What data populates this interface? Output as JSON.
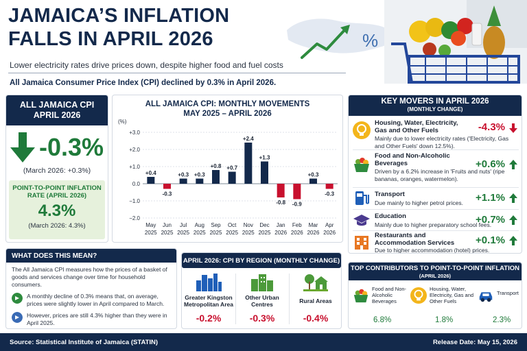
{
  "header": {
    "title": "JAMAICA’S INFLATION FALLS IN APRIL 2026",
    "subtitle": "Lower electricity rates drive prices down, despite higher food and fuel costs",
    "headline": "All Jamaica Consumer Price Index (CPI) declined by 0.3% in April 2026.",
    "map_symbol": "%"
  },
  "cpi_card": {
    "title": "ALL JAMAICA CPI APRIL 2026",
    "value": "-0.3%",
    "march_note": "(March 2026: +0.3%)",
    "p2p_label": "POINT-TO-POINT INFLATION RATE (APRIL 2026)",
    "p2p_value": "4.3%",
    "p2p_march": "(March 2026: 4.3%)"
  },
  "chart_data": {
    "type": "bar",
    "title": "ALL JAMAICA CPI:  MONTHLY MOVEMENTS",
    "subtitle": "MAY 2025 – APRIL 2026",
    "ylabel": "(%)",
    "categories": [
      "May 2025",
      "Jun 2025",
      "Jul 2025",
      "Aug 2025",
      "Sep 2025",
      "Oct 2025",
      "Nov 2025",
      "Dec 2025",
      "Jan 2026",
      "Feb 2026",
      "Mar 2026",
      "Apr 2026"
    ],
    "cat_month": [
      "May",
      "Jun",
      "Jul",
      "Aug",
      "Sep",
      "Oct",
      "Nov",
      "Dec",
      "Jan",
      "Feb",
      "Mar",
      "Apr"
    ],
    "cat_year": [
      "2025",
      "2025",
      "2025",
      "2025",
      "2025",
      "2025",
      "2025",
      "2025",
      "2026",
      "2026",
      "2026",
      "2026"
    ],
    "values": [
      0.4,
      -0.3,
      0.3,
      0.3,
      0.8,
      0.7,
      2.4,
      1.3,
      -0.8,
      -0.9,
      0.3,
      -0.3
    ],
    "data_labels": [
      "+0.4",
      "-0.3",
      "+0.3",
      "+0.3",
      "+0.8",
      "+0.7",
      "+2.4",
      "+1.3",
      "-0.8",
      "-0.9",
      "+0.3",
      "-0.3"
    ],
    "yticks": [
      3.0,
      2.0,
      1.0,
      0.0,
      -1.0,
      -2.0
    ],
    "ytick_labels": [
      "+3.0",
      "+2.0",
      "+1.0",
      "0.0",
      "−1.0",
      "−2.0"
    ],
    "ylim": [
      -2.0,
      3.0
    ],
    "grid": true,
    "colors": {
      "positive": "#13294b",
      "negative": "#c8102e"
    }
  },
  "movers": {
    "title": "KEY MOVERS IN APRIL 2026",
    "subtitle": "(MONTHLY CHANGE)",
    "items": [
      {
        "icon": "lightbulb-icon",
        "name": "Housing, Water, Electricity, Gas and Other Fuels",
        "desc": "Mainly due to lower electricity rates ('Electricity, Gas and Other Fuels' down 12.5%).",
        "value": "-4.3%",
        "direction": "down"
      },
      {
        "icon": "food-basket-icon",
        "name": "Food and Non-Alcoholic Beverages",
        "desc": "Driven by a 6.2% increase in 'Fruits and nuts' (ripe bananas, oranges, watermelon).",
        "value": "+0.6%",
        "direction": "up"
      },
      {
        "icon": "fuel-pump-icon",
        "name": "Transport",
        "desc": "Due mainly to higher petrol prices.",
        "value": "+1.1%",
        "direction": "up"
      },
      {
        "icon": "graduation-cap-icon",
        "name": "Education",
        "desc": "Mainly due to higher preparatory school fees.",
        "value": "+0.7%",
        "direction": "up"
      },
      {
        "icon": "hotel-building-icon",
        "name": "Restaurants and Accommodation Services",
        "desc": "Due to higher accommodation (hotel) prices.",
        "value": "+0.1%",
        "direction": "up"
      }
    ]
  },
  "wdtm": {
    "title": "WHAT DOES THIS MEAN?",
    "intro": "The All Jamaica CPI measures how the prices of a basket of goods and services change over time for household consumers.",
    "points": [
      "A monthly decline of 0.3% means that, on average, prices were slightly lower in April compared to March.",
      "However, prices are still 4.3% higher than they were in April 2025."
    ]
  },
  "region": {
    "title": "APRIL 2026: CPI BY REGION (MONTHLY CHANGE)",
    "items": [
      {
        "icon": "city-skyline-icon",
        "name": "Greater Kingston Metropolitan Area",
        "value": "-0.2%"
      },
      {
        "icon": "town-buildings-icon",
        "name": "Other Urban Centres",
        "value": "-0.3%"
      },
      {
        "icon": "rural-house-icon",
        "name": "Rural Areas",
        "value": "-0.4%"
      }
    ]
  },
  "contrib": {
    "title": "TOP CONTRIBUTORS TO POINT-TO-POINT INFLATION",
    "subtitle": "(APRIL 2026)",
    "items": [
      {
        "icon": "food-basket-icon",
        "name": "Food and Non-Alcoholic Beverages",
        "value": "6.8%"
      },
      {
        "icon": "lightbulb-icon",
        "name": "Housing, Water, Electricity, Gas and Other Fuels",
        "value": "1.8%"
      },
      {
        "icon": "car-icon",
        "name": "Transport",
        "value": "2.3%"
      }
    ]
  },
  "footer": {
    "source": "Source: Statistical Institute of Jamaica (STATIN)",
    "release": "Release Date: May 15, 2026"
  }
}
